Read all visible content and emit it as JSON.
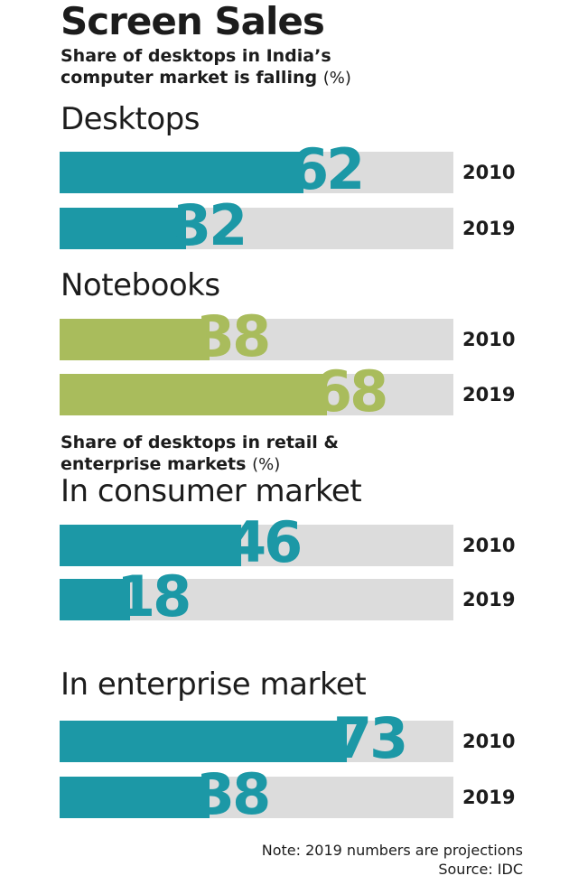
{
  "title": "Screen Sales",
  "subtitle1": {
    "text": "Share of desktops in India’s computer market is falling",
    "unit": "(%)"
  },
  "subtitle2": {
    "text": "Share of desktops in retail & enterprise markets",
    "unit": "(%)"
  },
  "footer": {
    "note": "Note: 2019 numbers are projections",
    "source": "Source: IDC"
  },
  "colors": {
    "teal": "#1c98a6",
    "green": "#a9bc5c",
    "track": "#dcdcdc"
  },
  "chart_data": {
    "type": "bar",
    "orientation": "horizontal",
    "xlim": [
      0,
      100
    ],
    "groups": [
      {
        "label": "Desktops",
        "color": "teal",
        "bars": [
          {
            "year": "2010",
            "value": 62
          },
          {
            "year": "2019",
            "value": 32
          }
        ]
      },
      {
        "label": "Notebooks",
        "color": "green",
        "bars": [
          {
            "year": "2010",
            "value": 38
          },
          {
            "year": "2019",
            "value": 68
          }
        ]
      },
      {
        "label": "In consumer market",
        "color": "teal",
        "bars": [
          {
            "year": "2010",
            "value": 46
          },
          {
            "year": "2019",
            "value": 18
          }
        ]
      },
      {
        "label": "In enterprise market",
        "color": "teal",
        "bars": [
          {
            "year": "2010",
            "value": 73
          },
          {
            "year": "2019",
            "value": 38
          }
        ]
      }
    ]
  }
}
